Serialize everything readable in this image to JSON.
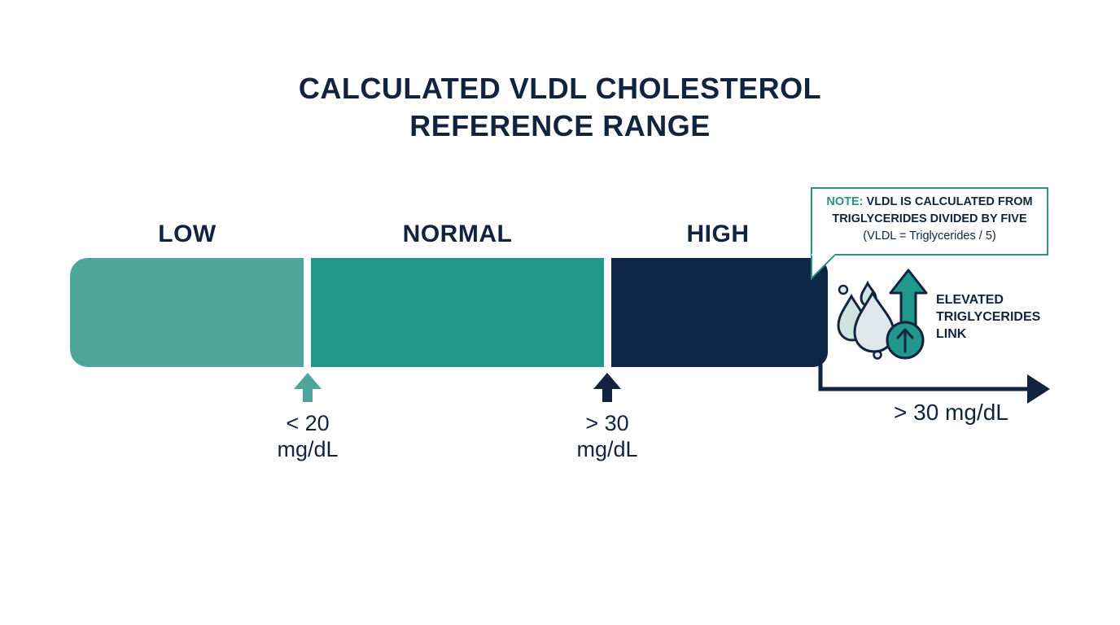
{
  "title": {
    "line1": "CALCULATED VLDL CHOLESTEROL",
    "line2": "REFERENCE RANGE"
  },
  "segments": [
    {
      "label": "LOW",
      "color": "#4ea59b"
    },
    {
      "label": "NORMAL",
      "color": "#22978c"
    },
    {
      "label": "HIGH",
      "color": "#0f2747"
    }
  ],
  "markers": [
    {
      "line1": "< 20",
      "line2": "mg/dL",
      "color": "#4ea59b",
      "icon": "arrow-up-icon"
    },
    {
      "line1": "> 30",
      "line2": "mg/dL",
      "color": "#12233f",
      "icon": "arrow-up-icon"
    }
  ],
  "callout": {
    "note_label": "NOTE:",
    "line1": "VLDL IS CALCULATED FROM",
    "line2": "TRIGLYCERIDES DIVIDED BY FIVE",
    "formula": "(VLDL = Triglycerides / 5)",
    "border_color": "#2b8f86"
  },
  "link": {
    "line1": "ELEVATED",
    "line2": "TRIGLYCERIDES",
    "line3": "LINK",
    "icon": "triglyceride-droplets-up-arrow-icon"
  },
  "high_axis": {
    "label": "> 30 mg/dL",
    "icon": "arrow-right-icon"
  }
}
